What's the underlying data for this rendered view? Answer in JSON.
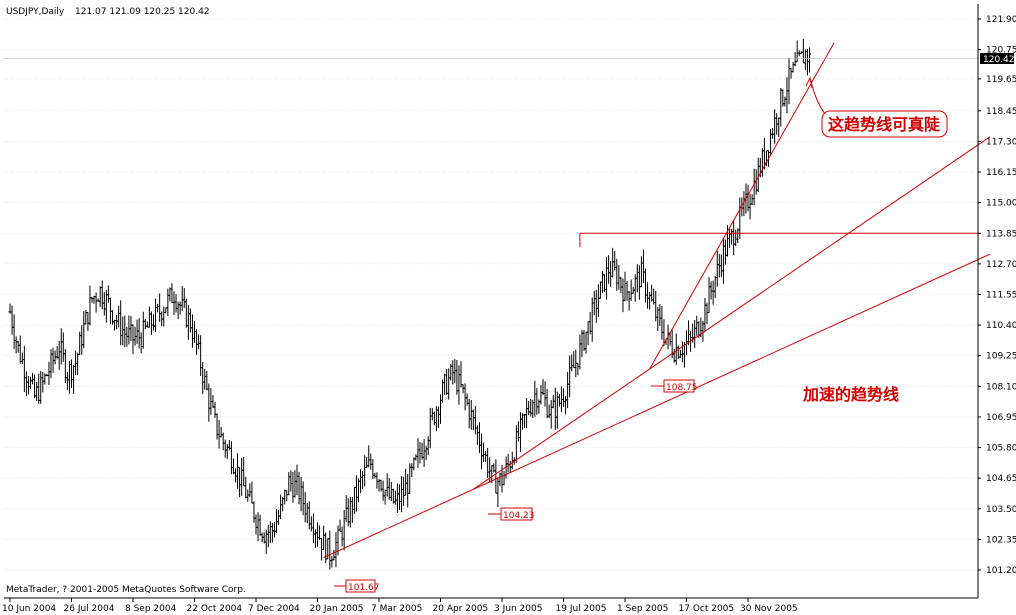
{
  "header": {
    "symbol": "USDJPY,Daily",
    "ohlc": "121.07 121.09 120.25 120.42"
  },
  "footer": {
    "copyright": "MetaTrader, ? 2001-2005 MetaQuotes Software Corp."
  },
  "colors": {
    "price_bars": "#000000",
    "trendline": "#d40000",
    "grid": "#c8c8c8",
    "current_price_tag": "#000000"
  },
  "chart_data": {
    "type": "ohlc",
    "y_ticks": [
      "121.90",
      "120.75",
      "119.65",
      "118.45",
      "117.30",
      "116.15",
      "115.00",
      "113.85",
      "112.70",
      "111.55",
      "110.40",
      "109.25",
      "108.10",
      "106.95",
      "105.80",
      "104.65",
      "103.50",
      "102.35",
      "101.20"
    ],
    "x_ticks": [
      "10 Jun 2004",
      "26 Jul 2004",
      "8 Sep 2004",
      "22 Oct 2004",
      "7 Dec 2004",
      "20 Jan 2005",
      "7 Mar 2005",
      "20 Apr 2005",
      "3 Jun 2005",
      "19 Jul 2005",
      "1 Sep 2005",
      "17 Oct 2005",
      "30 Nov 2005"
    ],
    "ylim": [
      101.2,
      122.3
    ],
    "grid": true,
    "current_price": "120.42",
    "close_path": [
      [
        0,
        110.9
      ],
      [
        4,
        109.5
      ],
      [
        8,
        108.6
      ],
      [
        12,
        107.7
      ],
      [
        16,
        108.2
      ],
      [
        20,
        108.9
      ],
      [
        24,
        109.6
      ],
      [
        28,
        108.6
      ],
      [
        32,
        109.0
      ],
      [
        36,
        110.3
      ],
      [
        40,
        111.4
      ],
      [
        44,
        111.7
      ],
      [
        48,
        111.2
      ],
      [
        52,
        110.6
      ],
      [
        56,
        110.1
      ],
      [
        60,
        109.9
      ],
      [
        64,
        110.0
      ],
      [
        68,
        110.4
      ],
      [
        72,
        110.8
      ],
      [
        76,
        111.2
      ],
      [
        80,
        111.6
      ],
      [
        84,
        111.0
      ],
      [
        88,
        110.5
      ],
      [
        92,
        109.3
      ],
      [
        96,
        107.9
      ],
      [
        100,
        106.7
      ],
      [
        104,
        106.0
      ],
      [
        108,
        105.5
      ],
      [
        112,
        104.7
      ],
      [
        116,
        103.9
      ],
      [
        120,
        103.2
      ],
      [
        124,
        102.6
      ],
      [
        128,
        102.7
      ],
      [
        132,
        103.4
      ],
      [
        136,
        104.5
      ],
      [
        140,
        104.3
      ],
      [
        144,
        103.6
      ],
      [
        148,
        103.0
      ],
      [
        152,
        102.3
      ],
      [
        156,
        101.8
      ],
      [
        160,
        102.3
      ],
      [
        164,
        103.1
      ],
      [
        168,
        103.9
      ],
      [
        172,
        104.7
      ],
      [
        176,
        105.2
      ],
      [
        180,
        104.7
      ],
      [
        184,
        104.0
      ],
      [
        188,
        103.7
      ],
      [
        192,
        104.1
      ],
      [
        196,
        104.8
      ],
      [
        200,
        105.6
      ],
      [
        204,
        106.4
      ],
      [
        208,
        107.3
      ],
      [
        212,
        108.1
      ],
      [
        216,
        108.6
      ],
      [
        220,
        108.0
      ],
      [
        224,
        107.2
      ],
      [
        228,
        106.3
      ],
      [
        232,
        105.4
      ],
      [
        236,
        104.5
      ],
      [
        240,
        104.6
      ],
      [
        244,
        105.3
      ],
      [
        248,
        106.2
      ],
      [
        252,
        107.1
      ],
      [
        256,
        107.8
      ],
      [
        260,
        107.7
      ],
      [
        264,
        107.1
      ],
      [
        268,
        107.5
      ],
      [
        272,
        108.2
      ],
      [
        276,
        109.0
      ],
      [
        280,
        109.9
      ],
      [
        284,
        110.8
      ],
      [
        288,
        111.7
      ],
      [
        292,
        112.5
      ],
      [
        296,
        112.3
      ],
      [
        300,
        111.6
      ],
      [
        304,
        111.9
      ],
      [
        308,
        112.3
      ],
      [
        312,
        111.4
      ],
      [
        316,
        110.6
      ],
      [
        320,
        109.9
      ],
      [
        324,
        109.5
      ],
      [
        328,
        109.6
      ],
      [
        332,
        109.8
      ],
      [
        336,
        110.4
      ],
      [
        340,
        111.2
      ],
      [
        344,
        112.2
      ],
      [
        348,
        113.1
      ],
      [
        352,
        113.7
      ],
      [
        356,
        114.4
      ],
      [
        360,
        115.1
      ],
      [
        364,
        115.9
      ],
      [
        368,
        116.8
      ],
      [
        372,
        117.8
      ],
      [
        376,
        118.8
      ],
      [
        380,
        119.6
      ],
      [
        384,
        120.2
      ],
      [
        388,
        120.6
      ],
      [
        390,
        120.4
      ]
    ],
    "horizontal_line": {
      "value": 113.85,
      "from_date": "19 Jul 2005"
    },
    "point_labels": [
      "101.67",
      "104.23",
      "108.75"
    ],
    "annotations": [
      "这趋势线可真陡",
      "加速的趋势线"
    ]
  }
}
